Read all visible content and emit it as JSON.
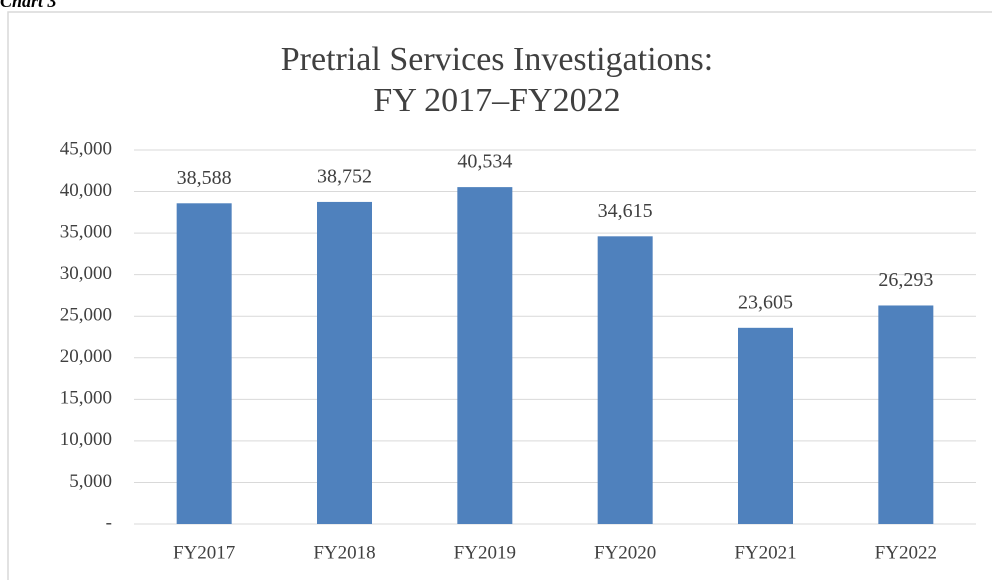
{
  "chart_data": {
    "type": "bar",
    "caption": "Chart 3",
    "title": [
      "Pretrial Services Investigations:",
      "FY 2017–FY2022"
    ],
    "categories": [
      "FY2017",
      "FY2018",
      "FY2019",
      "FY2020",
      "FY2021",
      "FY2022"
    ],
    "values": [
      38588,
      38752,
      40534,
      34615,
      23605,
      26293
    ],
    "value_labels": [
      "38,588",
      "38,752",
      "40,534",
      "34,615",
      "23,605",
      "26,293"
    ],
    "color": "#4f81bd",
    "ylim": [
      0,
      45000
    ],
    "yticks": [
      {
        "value": 0,
        "label": "-"
      },
      {
        "value": 5000,
        "label": "5,000"
      },
      {
        "value": 10000,
        "label": "10,000"
      },
      {
        "value": 15000,
        "label": "15,000"
      },
      {
        "value": 20000,
        "label": "20,000"
      },
      {
        "value": 25000,
        "label": "25,000"
      },
      {
        "value": 30000,
        "label": "30,000"
      },
      {
        "value": 35000,
        "label": "35,000"
      },
      {
        "value": 40000,
        "label": "40,000"
      },
      {
        "value": 45000,
        "label": "45,000"
      }
    ],
    "grid": true
  }
}
